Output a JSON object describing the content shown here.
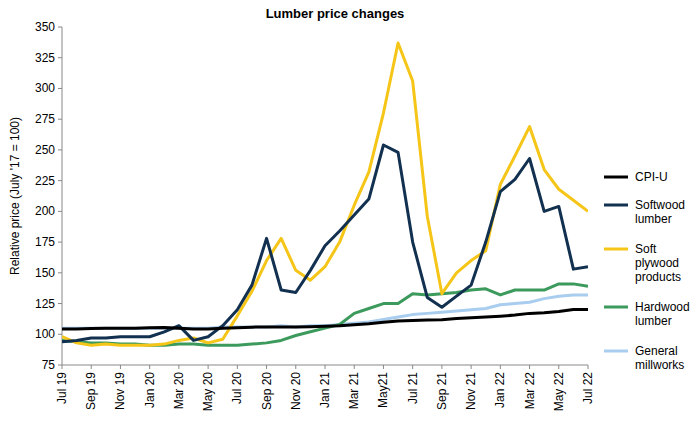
{
  "chart_data": {
    "type": "line",
    "title": "Lumber price changes",
    "y_label": "Relative price (July '17 = 100)",
    "categories": [
      "Jul 19",
      null,
      "Sep 19",
      null,
      "Nov 19",
      null,
      "Jan 20",
      null,
      "Mar 20",
      null,
      "May 20",
      null,
      "Jul 20",
      null,
      "Sep 20",
      null,
      "Nov 20",
      null,
      "Jan 21",
      null,
      "Mar 21",
      null,
      "May21",
      null,
      "Jul 21",
      null,
      "Sep 21",
      null,
      "Nov 21",
      null,
      "Jan 22",
      null,
      "Mar 22",
      null,
      "May 22",
      null,
      "Jul 22"
    ],
    "ylim": [
      75,
      350
    ],
    "yticks": [
      75,
      100,
      125,
      150,
      175,
      200,
      225,
      250,
      275,
      300,
      325,
      350
    ],
    "grid": false,
    "legend": "right",
    "series": [
      {
        "name": "CPI-U",
        "color": "#000000",
        "values": [
          104.3,
          104.3,
          104.6,
          104.8,
          105,
          105,
          105.3,
          105.5,
          105,
          104.3,
          104.2,
          104.8,
          105.4,
          105.8,
          106,
          106,
          106,
          106.2,
          106.6,
          107,
          107.7,
          108.6,
          109.8,
          110.8,
          111.3,
          111.6,
          111.9,
          112.8,
          113.5,
          114,
          114.7,
          115.6,
          117,
          117.5,
          118.6,
          120.1,
          120.1
        ]
      },
      {
        "name": "Softwood lumber",
        "color": "#12304f",
        "values": [
          94,
          95,
          97,
          97,
          98,
          98,
          98,
          102,
          107,
          95,
          98,
          107,
          120,
          140,
          178,
          136,
          134,
          152,
          172,
          184,
          197,
          210,
          254,
          248,
          175,
          130,
          122,
          131,
          140,
          175,
          216,
          226,
          243,
          200,
          204,
          153,
          155
        ]
      },
      {
        "name": "Soft plywood products",
        "color": "#f5c518",
        "values": [
          98,
          93,
          91,
          92,
          91,
          91,
          91,
          92,
          95,
          97,
          93,
          96,
          115,
          135,
          160,
          178,
          152,
          144,
          155,
          175,
          205,
          232,
          280,
          337,
          306,
          196,
          133,
          150,
          160,
          168,
          222,
          245,
          269,
          234,
          218,
          209,
          200
        ]
      },
      {
        "name": "Hardwood lumber",
        "color": "#3b9a5c",
        "values": [
          95,
          94,
          93,
          93,
          92,
          92,
          91,
          91,
          92,
          92,
          91,
          91,
          91,
          92,
          93,
          95,
          99,
          102,
          105,
          108,
          117,
          121,
          125,
          125,
          133,
          132,
          133,
          134,
          136,
          137,
          132,
          136,
          136,
          136,
          141,
          141,
          139
        ]
      },
      {
        "name": "General millworks",
        "color": "#a9cdee",
        "values": [
          105,
          105,
          105,
          105,
          105,
          105,
          105,
          105,
          105,
          105,
          105,
          106,
          106,
          106,
          106,
          107,
          106,
          107,
          107,
          108,
          109,
          110,
          112,
          114,
          116,
          117,
          118,
          119,
          120,
          121,
          124,
          125,
          126,
          129,
          131,
          132,
          132
        ]
      }
    ]
  }
}
